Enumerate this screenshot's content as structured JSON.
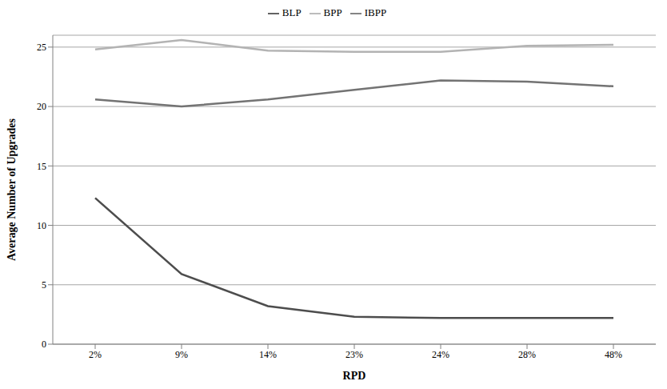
{
  "chart_data": {
    "type": "line",
    "x_label": "RPD",
    "y_label": "Average Number of Upgrades",
    "categories": [
      "2%",
      "9%",
      "14%",
      "23%",
      "24%",
      "28%",
      "48%"
    ],
    "series": [
      {
        "name": "BLP",
        "color": "#4d4d4d",
        "values": [
          12.3,
          5.9,
          3.2,
          2.3,
          2.2,
          2.2,
          2.2
        ]
      },
      {
        "name": "BPP",
        "color": "#b3b3b3",
        "values": [
          24.8,
          25.6,
          24.7,
          24.6,
          24.6,
          25.1,
          25.2
        ]
      },
      {
        "name": "IBPP",
        "color": "#737373",
        "values": [
          20.6,
          20.0,
          20.6,
          21.4,
          22.2,
          22.1,
          21.7
        ]
      }
    ],
    "ylim": [
      0,
      26
    ],
    "yticks": [
      0,
      5,
      10,
      15,
      20,
      25
    ],
    "grid": true,
    "legend": "top"
  }
}
